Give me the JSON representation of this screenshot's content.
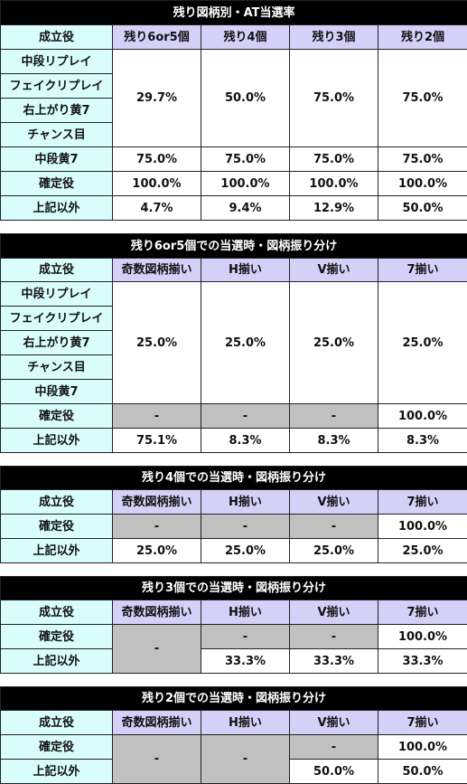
{
  "t1": {
    "title": "残り図柄別・AT当選率",
    "headers": [
      "成立役",
      "残り6or5個",
      "残り4個",
      "残り3個",
      "残り2個"
    ],
    "roles": [
      "中段リプレイ",
      "フェイクリプレイ",
      "右上がり黄7",
      "チャンス目"
    ],
    "group_vals": [
      "29.7%",
      "50.0%",
      "75.0%",
      "75.0%"
    ],
    "rows": [
      {
        "role": "中段黄7",
        "vals": [
          "75.0%",
          "75.0%",
          "75.0%",
          "75.0%"
        ]
      },
      {
        "role": "確定役",
        "vals": [
          "100.0%",
          "100.0%",
          "100.0%",
          "100.0%"
        ]
      },
      {
        "role": "上記以外",
        "vals": [
          "4.7%",
          "9.4%",
          "12.9%",
          "50.0%"
        ]
      }
    ]
  },
  "t2": {
    "title": "残り6or5個での当選時・図柄振り分け",
    "headers": [
      "成立役",
      "奇数図柄揃い",
      "H揃い",
      "V揃い",
      "7揃い"
    ],
    "roles": [
      "中段リプレイ",
      "フェイクリプレイ",
      "右上がり黄7",
      "チャンス目",
      "中段黄7"
    ],
    "group_vals": [
      "25.0%",
      "25.0%",
      "25.0%",
      "25.0%"
    ],
    "rows": [
      {
        "role": "確定役",
        "vals": [
          "-",
          "-",
          "-",
          "100.0%"
        ]
      },
      {
        "role": "上記以外",
        "vals": [
          "75.1%",
          "8.3%",
          "8.3%",
          "8.3%"
        ]
      }
    ]
  },
  "t3": {
    "title": "残り4個での当選時・図柄振り分け",
    "headers": [
      "成立役",
      "奇数図柄揃い",
      "H揃い",
      "V揃い",
      "7揃い"
    ],
    "rows": [
      {
        "role": "確定役",
        "vals": [
          "-",
          "-",
          "-",
          "100.0%"
        ]
      },
      {
        "role": "上記以外",
        "vals": [
          "25.0%",
          "25.0%",
          "25.0%",
          "25.0%"
        ]
      }
    ]
  },
  "t4": {
    "title": "残り3個での当選時・図柄振り分け",
    "headers": [
      "成立役",
      "奇数図柄揃い",
      "H揃い",
      "V揃い",
      "7揃い"
    ],
    "merged_odd": "-",
    "rows": [
      {
        "role": "確定役",
        "vals": [
          "-",
          "-",
          "100.0%"
        ]
      },
      {
        "role": "上記以外",
        "vals": [
          "33.3%",
          "33.3%",
          "33.3%"
        ]
      }
    ]
  },
  "t5": {
    "title": "残り2個での当選時・図柄振り分け",
    "headers": [
      "成立役",
      "奇数図柄揃い",
      "H揃い",
      "V揃い",
      "7揃い"
    ],
    "merged_odd": "-",
    "merged_h": "-",
    "rows": [
      {
        "role": "確定役",
        "vals": [
          "-",
          "100.0%"
        ]
      },
      {
        "role": "上記以外",
        "vals": [
          "50.0%",
          "50.0%"
        ]
      }
    ]
  },
  "colors": {
    "title_bg": "#000000",
    "role_bg": "#d9fcfc",
    "header_bg": "#d4d0f8",
    "disabled_bg": "#c0c0c0"
  }
}
